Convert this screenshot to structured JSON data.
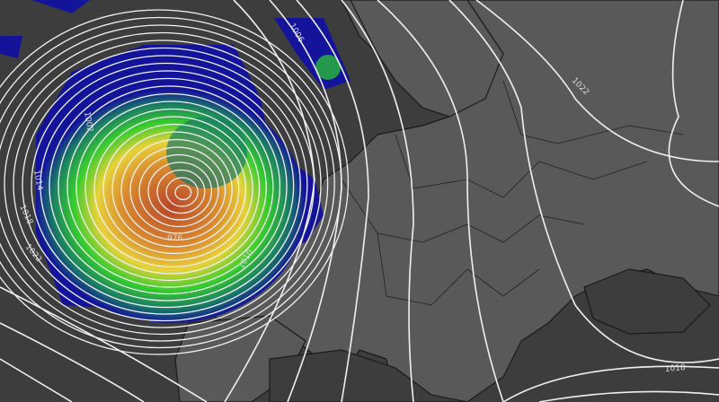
{
  "map": {
    "type": "weather-pressure-chart",
    "region": "Europe / North Atlantic",
    "colors": {
      "sea": "#3f3f3f",
      "land": "#5a5a5a",
      "isobar": "#f2f2f2",
      "wind_low": "#1a1aa8",
      "wind_mid": "#2bd12b",
      "wind_high": "#f0d020",
      "wind_max": "#c0502a"
    },
    "isobar_labels": [
      {
        "text": "1006"
      },
      {
        "text": "1002"
      },
      {
        "text": "1014"
      },
      {
        "text": "1018"
      },
      {
        "text": "1022"
      },
      {
        "text": "976"
      },
      {
        "text": "1010"
      },
      {
        "text": "1022"
      },
      {
        "text": "1018"
      }
    ]
  }
}
